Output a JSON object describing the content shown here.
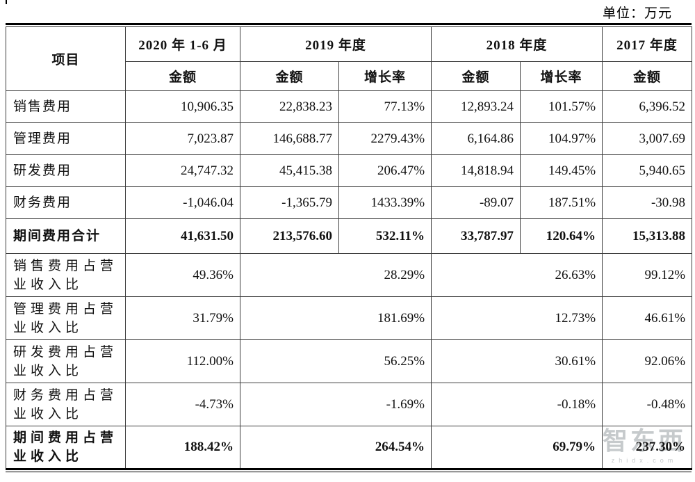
{
  "unit_label": "单位：万元",
  "watermark": {
    "logo": "智东西",
    "domain": "zhidx.com"
  },
  "table": {
    "header": {
      "item": "项目",
      "col_2020": "2020 年 1-6 月",
      "col_2019": "2019 年度",
      "col_2018": "2018 年度",
      "col_2017": "2017 年度",
      "amount": "金额",
      "growth": "增长率"
    },
    "rows": [
      {
        "type": "data",
        "bold": false,
        "label": "销售费用",
        "values": [
          "10,906.35",
          "22,838.23",
          "77.13%",
          "12,893.24",
          "101.57%",
          "6,396.52"
        ]
      },
      {
        "type": "data",
        "bold": false,
        "label": "管理费用",
        "values": [
          "7,023.87",
          "146,688.77",
          "2279.43%",
          "6,164.86",
          "104.97%",
          "3,007.69"
        ]
      },
      {
        "type": "data",
        "bold": false,
        "label": "研发费用",
        "values": [
          "24,747.32",
          "45,415.38",
          "206.47%",
          "14,818.94",
          "149.45%",
          "5,940.65"
        ]
      },
      {
        "type": "data",
        "bold": false,
        "label": "财务费用",
        "values": [
          "-1,046.04",
          "-1,365.79",
          "1433.39%",
          "-89.07",
          "187.51%",
          "-30.98"
        ]
      },
      {
        "type": "data",
        "bold": true,
        "label": "期间费用合计",
        "values": [
          "41,631.50",
          "213,576.60",
          "532.11%",
          "33,787.97",
          "120.64%",
          "15,313.88"
        ]
      },
      {
        "type": "ratio",
        "bold": false,
        "label": "销售费用占营业收入比",
        "values": [
          "49.36%",
          "28.29%",
          "26.63%",
          "99.12%"
        ]
      },
      {
        "type": "ratio",
        "bold": false,
        "label": "管理费用占营业收入比",
        "values": [
          "31.79%",
          "181.69%",
          "12.73%",
          "46.61%"
        ]
      },
      {
        "type": "ratio",
        "bold": false,
        "label": "研发费用占营业收入比",
        "values": [
          "112.00%",
          "56.25%",
          "30.61%",
          "92.06%"
        ]
      },
      {
        "type": "ratio",
        "bold": false,
        "label": "财务费用占营业收入比",
        "values": [
          "-4.73%",
          "-1.69%",
          "-0.18%",
          "-0.48%"
        ]
      },
      {
        "type": "ratio",
        "bold": true,
        "label": "期间费用占营业收入比",
        "values": [
          "188.42%",
          "264.54%",
          "69.79%",
          "237.30%"
        ]
      }
    ]
  }
}
